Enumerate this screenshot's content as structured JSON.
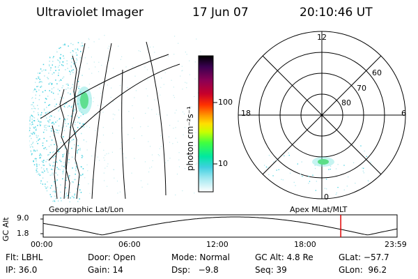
{
  "header": {
    "instrument": "Ultraviolet Imager",
    "date": "17 Jun 07",
    "time": "20:10:46 UT"
  },
  "colorbar": {
    "label": "photon cm⁻²s⁻¹",
    "ticks": [
      "100",
      "10"
    ],
    "colors": [
      "#000000",
      "#3a0050",
      "#8a0055",
      "#c8002a",
      "#ff3000",
      "#ff9a00",
      "#ffe000",
      "#c8ff00",
      "#40ff40",
      "#00e8a0",
      "#40d0e0",
      "#a0e8f0",
      "#ffffff"
    ]
  },
  "polar": {
    "mlt_labels": {
      "top": "12",
      "left": "18",
      "right": "6",
      "bottom": "0"
    },
    "lat_labels": [
      "60",
      "70",
      "80"
    ]
  },
  "panel_labels": {
    "geo": "Geographic Lat/Lon",
    "apex": "Apex MLat/MLT"
  },
  "alt_plot": {
    "ylabel": "GC Alt",
    "yticks": [
      "9.0",
      "1.8"
    ],
    "xticks": [
      "00:00",
      "06:00",
      "12:00",
      "18:00",
      "23:59"
    ],
    "marker_time_hours": 20.18,
    "marker_color": "#e00000"
  },
  "info": {
    "row1": [
      "Flt: LBHL",
      "Door: Open",
      "Mode: Normal",
      "GC Alt: 4.8 Re",
      "GLat: −57.7"
    ],
    "row2": [
      "IP: 36.0",
      "Gain: 14",
      "Dsp:   −9.8",
      "Seq: 39",
      "GLon:  96.2"
    ]
  }
}
